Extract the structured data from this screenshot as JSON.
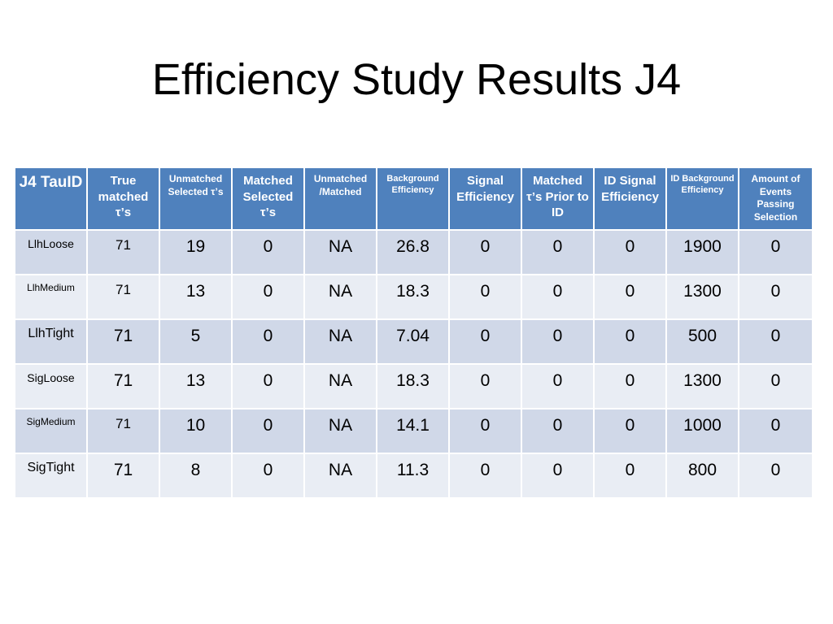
{
  "title": "Efficiency Study Results J4",
  "table": {
    "headers": [
      "J4 TauID",
      "True matched τ’s",
      "Unmatched Selected τ’s",
      "Matched Selected τ’s",
      "Unmatched /Matched",
      "Background Efficiency",
      "Signal Efficiency",
      "Matched τ’s  Prior to ID",
      "ID Signal Efficiency",
      "ID Background Efficiency",
      "Amount of Events Passing Selection"
    ],
    "rows": [
      [
        "LlhLoose",
        "71",
        "19",
        "0",
        "NA",
        "26.8",
        "0",
        "0",
        "0",
        "1900",
        "0"
      ],
      [
        "LlhMedium",
        "71",
        "13",
        "0",
        "NA",
        "18.3",
        "0",
        "0",
        "0",
        "1300",
        "0"
      ],
      [
        "LlhTight",
        "71",
        "5",
        "0",
        "NA",
        "7.04",
        "0",
        "0",
        "0",
        "500",
        "0"
      ],
      [
        "SigLoose",
        "71",
        "13",
        "0",
        "NA",
        "18.3",
        "0",
        "0",
        "0",
        "1300",
        "0"
      ],
      [
        "SigMedium",
        "71",
        "10",
        "0",
        "NA",
        "14.1",
        "0",
        "0",
        "0",
        "1000",
        "0"
      ],
      [
        "SigTight",
        "71",
        "8",
        "0",
        "NA",
        "11.3",
        "0",
        "0",
        "0",
        "800",
        "0"
      ]
    ]
  },
  "colors": {
    "header_bg": "#4f81bd",
    "row_odd_bg": "#d0d8e8",
    "row_even_bg": "#e9edf4"
  }
}
